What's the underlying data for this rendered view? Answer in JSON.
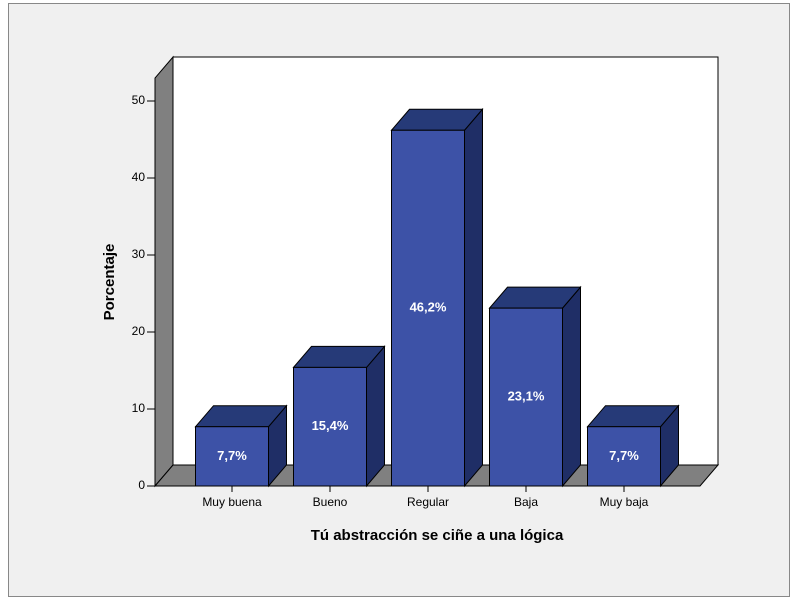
{
  "chart_data": {
    "type": "bar3d",
    "x_label": "Tú abstracción se ciñe a una lógica",
    "y_label": "Porcentaje",
    "categories": [
      "Muy buena",
      "Bueno",
      "Regular",
      "Baja",
      "Muy baja"
    ],
    "values": [
      7.7,
      15.4,
      46.2,
      23.1,
      7.7
    ],
    "value_labels": [
      "7,7%",
      "15,4%",
      "46,2%",
      "23,1%",
      "7,7%"
    ],
    "color": "#3d52a7",
    "ylim": [
      0,
      50
    ],
    "yticks": [
      0,
      10,
      20,
      30,
      40,
      50
    ]
  }
}
